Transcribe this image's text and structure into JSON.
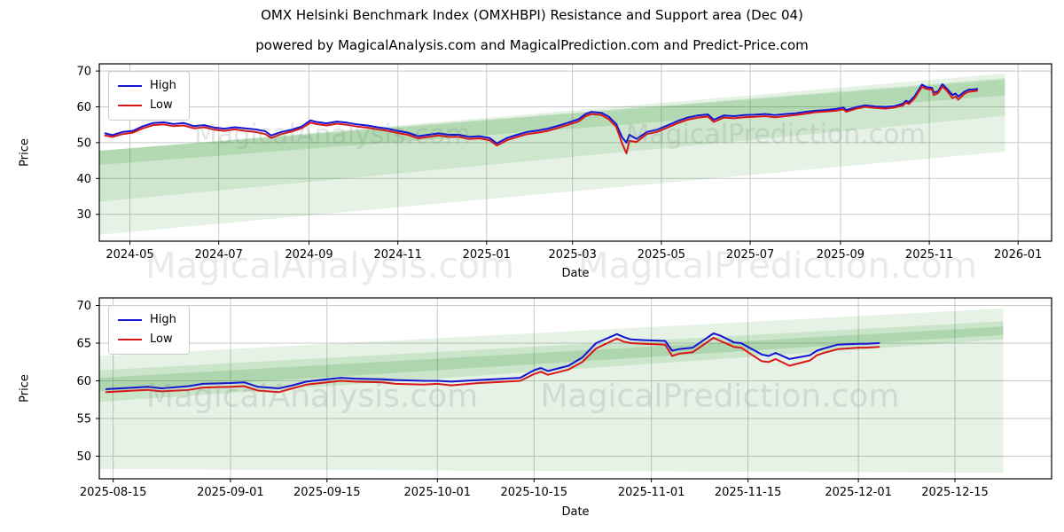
{
  "figure": {
    "title": "OMX Helsinki Benchmark Index (OMXHBPI) Resistance and Support area (Dec 04)",
    "subtitle": "powered by MagicalAnalysis.com and MagicalPrediction.com and Predict-Price.com",
    "background": "#ffffff"
  },
  "colors": {
    "high_line": "#1414d2",
    "low_line": "#d81818",
    "band_green": "#008000",
    "grid": "#c8c8c8",
    "spine": "#000000",
    "tick_text": "#000000"
  },
  "legend": {
    "items": [
      {
        "label": "High",
        "color": "#1414d2"
      },
      {
        "label": "Low",
        "color": "#d81818"
      }
    ]
  },
  "watermarks": [
    "MagicalAnalysis.com",
    "MagicalPrediction.com"
  ],
  "chart_data": [
    {
      "type": "line",
      "title": "",
      "xlabel": "Date",
      "ylabel": "Price",
      "grid": true,
      "legend_position": "upper-left",
      "x_domain": [
        "2024-04-10",
        "2026-01-24"
      ],
      "y_domain": [
        22.5,
        72
      ],
      "y_ticks": [
        30,
        40,
        50,
        60,
        70
      ],
      "x_ticks": [
        {
          "date": "2024-05-01",
          "label": "2024-05"
        },
        {
          "date": "2024-07-01",
          "label": "2024-07"
        },
        {
          "date": "2024-09-01",
          "label": "2024-09"
        },
        {
          "date": "2024-11-01",
          "label": "2024-11"
        },
        {
          "date": "2025-01-01",
          "label": "2025-01"
        },
        {
          "date": "2025-03-01",
          "label": "2025-03"
        },
        {
          "date": "2025-05-01",
          "label": "2025-05"
        },
        {
          "date": "2025-07-01",
          "label": "2025-07"
        },
        {
          "date": "2025-09-01",
          "label": "2025-09"
        },
        {
          "date": "2025-11-01",
          "label": "2025-11"
        },
        {
          "date": "2026-01-01",
          "label": "2026-01"
        }
      ],
      "dates": [
        "2024-04-14",
        "2024-04-19",
        "2024-04-26",
        "2024-05-03",
        "2024-05-10",
        "2024-05-17",
        "2024-05-24",
        "2024-05-31",
        "2024-06-07",
        "2024-06-14",
        "2024-06-21",
        "2024-06-28",
        "2024-07-05",
        "2024-07-12",
        "2024-07-19",
        "2024-07-26",
        "2024-08-02",
        "2024-08-06",
        "2024-08-13",
        "2024-08-20",
        "2024-08-27",
        "2024-09-02",
        "2024-09-06",
        "2024-09-13",
        "2024-09-20",
        "2024-09-27",
        "2024-10-04",
        "2024-10-11",
        "2024-10-18",
        "2024-10-25",
        "2024-11-01",
        "2024-11-08",
        "2024-11-15",
        "2024-11-22",
        "2024-11-29",
        "2024-12-06",
        "2024-12-13",
        "2024-12-20",
        "2024-12-27",
        "2025-01-03",
        "2025-01-08",
        "2025-01-15",
        "2025-01-22",
        "2025-01-29",
        "2025-02-05",
        "2025-02-12",
        "2025-02-19",
        "2025-02-26",
        "2025-03-05",
        "2025-03-10",
        "2025-03-14",
        "2025-03-21",
        "2025-03-26",
        "2025-03-31",
        "2025-04-04",
        "2025-04-07",
        "2025-04-09",
        "2025-04-14",
        "2025-04-21",
        "2025-04-28",
        "2025-05-05",
        "2025-05-12",
        "2025-05-19",
        "2025-05-26",
        "2025-06-02",
        "2025-06-06",
        "2025-06-13",
        "2025-06-20",
        "2025-06-27",
        "2025-07-04",
        "2025-07-11",
        "2025-07-18",
        "2025-07-25",
        "2025-08-01",
        "2025-08-08",
        "2025-08-15",
        "2025-08-22",
        "2025-08-29",
        "2025-09-03",
        "2025-09-05",
        "2025-09-12",
        "2025-09-18",
        "2025-09-25",
        "2025-10-02",
        "2025-10-08",
        "2025-10-14",
        "2025-10-16",
        "2025-10-18",
        "2025-10-22",
        "2025-10-27",
        "2025-10-30",
        "2025-11-03",
        "2025-11-04",
        "2025-11-07",
        "2025-11-10",
        "2025-11-13",
        "2025-11-17",
        "2025-11-19",
        "2025-11-21",
        "2025-11-25",
        "2025-11-28",
        "2025-12-02",
        "2025-12-04"
      ],
      "series": [
        {
          "name": "High",
          "color": "#1414d2",
          "values": [
            52.6,
            52.1,
            53.0,
            53.3,
            54.6,
            55.5,
            55.7,
            55.2,
            55.5,
            54.6,
            54.9,
            54.2,
            53.9,
            54.3,
            54.0,
            53.7,
            53.2,
            52.0,
            53.0,
            53.6,
            54.5,
            56.2,
            55.8,
            55.4,
            55.9,
            55.6,
            55.1,
            54.8,
            54.3,
            53.9,
            53.3,
            52.8,
            51.8,
            52.2,
            52.6,
            52.2,
            52.2,
            51.6,
            51.8,
            51.3,
            49.8,
            51.3,
            52.2,
            53.0,
            53.4,
            53.9,
            54.7,
            55.6,
            56.5,
            58.0,
            58.6,
            58.3,
            57.2,
            55.2,
            51.5,
            50.0,
            52.2,
            51.0,
            53.0,
            53.6,
            54.8,
            56.0,
            57.0,
            57.6,
            57.9,
            56.4,
            57.6,
            57.4,
            57.7,
            57.8,
            58.0,
            57.7,
            58.0,
            58.2,
            58.6,
            58.9,
            59.1,
            59.4,
            59.8,
            59.1,
            59.9,
            60.4,
            60.1,
            60.0,
            60.2,
            60.9,
            61.7,
            61.3,
            63.0,
            66.2,
            65.5,
            65.3,
            64.0,
            64.3,
            66.3,
            65.1,
            63.3,
            63.7,
            62.9,
            64.2,
            64.8,
            64.9,
            65.0
          ]
        },
        {
          "name": "Low",
          "color": "#d81818",
          "values": [
            52.0,
            51.6,
            52.4,
            52.8,
            54.0,
            54.9,
            55.1,
            54.6,
            54.8,
            54.0,
            54.3,
            53.6,
            53.3,
            53.7,
            53.3,
            53.0,
            52.4,
            51.3,
            52.4,
            53.1,
            54.0,
            55.6,
            55.2,
            54.8,
            55.3,
            55.0,
            54.5,
            54.2,
            53.7,
            53.3,
            52.7,
            52.2,
            51.2,
            51.6,
            52.0,
            51.6,
            51.6,
            51.0,
            51.2,
            50.7,
            49.2,
            50.7,
            51.6,
            52.4,
            52.8,
            53.3,
            54.1,
            55.0,
            55.9,
            57.4,
            58.0,
            57.7,
            56.5,
            54.4,
            49.8,
            47.0,
            50.5,
            50.2,
            52.4,
            53.0,
            54.2,
            55.4,
            56.4,
            57.0,
            57.3,
            55.8,
            57.0,
            56.8,
            57.1,
            57.2,
            57.4,
            57.1,
            57.4,
            57.7,
            58.1,
            58.5,
            58.7,
            58.9,
            59.3,
            58.6,
            59.5,
            60.0,
            59.7,
            59.5,
            59.8,
            60.4,
            61.2,
            60.8,
            62.4,
            65.6,
            65.0,
            64.8,
            63.3,
            63.8,
            65.7,
            64.5,
            62.4,
            62.9,
            62.0,
            63.6,
            64.2,
            64.4,
            64.5
          ]
        }
      ],
      "bands": [
        {
          "name": "support-resistance-outer",
          "color": "#008000",
          "opacity": 0.1,
          "points": [
            [
              "2024-04-10",
              47.7
            ],
            [
              "2025-12-23",
              69.3
            ],
            [
              "2025-12-23",
              47.5
            ],
            [
              "2024-04-10",
              24.3
            ]
          ]
        },
        {
          "name": "support-resistance-mid",
          "color": "#008000",
          "opacity": 0.1,
          "points": [
            [
              "2024-04-10",
              47.7
            ],
            [
              "2025-12-23",
              67.6
            ],
            [
              "2025-12-23",
              57.5
            ],
            [
              "2024-04-10",
              33.5
            ]
          ]
        },
        {
          "name": "support-resistance-core",
          "color": "#008000",
          "opacity": 0.13,
          "points": [
            [
              "2024-04-10",
              47.8
            ],
            [
              "2025-12-23",
              68.0
            ],
            [
              "2025-12-23",
              63.2
            ],
            [
              "2024-04-10",
              43.8
            ]
          ]
        }
      ]
    },
    {
      "type": "line",
      "title": "",
      "xlabel": "Date",
      "ylabel": "Price",
      "grid": true,
      "legend_position": "upper-left",
      "x_domain": [
        "2025-08-13",
        "2025-12-29"
      ],
      "y_domain": [
        47,
        71
      ],
      "y_ticks": [
        50,
        55,
        60,
        65,
        70
      ],
      "x_ticks": [
        {
          "date": "2025-08-15",
          "label": "2025-08-15"
        },
        {
          "date": "2025-09-01",
          "label": "2025-09-01"
        },
        {
          "date": "2025-09-15",
          "label": "2025-09-15"
        },
        {
          "date": "2025-10-01",
          "label": "2025-10-01"
        },
        {
          "date": "2025-10-15",
          "label": "2025-10-15"
        },
        {
          "date": "2025-11-01",
          "label": "2025-11-01"
        },
        {
          "date": "2025-11-15",
          "label": "2025-11-15"
        },
        {
          "date": "2025-12-01",
          "label": "2025-12-01"
        },
        {
          "date": "2025-12-15",
          "label": "2025-12-15"
        }
      ],
      "dates": [
        "2025-08-14",
        "2025-08-18",
        "2025-08-20",
        "2025-08-22",
        "2025-08-26",
        "2025-08-28",
        "2025-09-01",
        "2025-09-03",
        "2025-09-05",
        "2025-09-08",
        "2025-09-10",
        "2025-09-12",
        "2025-09-15",
        "2025-09-17",
        "2025-09-19",
        "2025-09-23",
        "2025-09-25",
        "2025-09-29",
        "2025-10-01",
        "2025-10-03",
        "2025-10-07",
        "2025-10-09",
        "2025-10-13",
        "2025-10-15",
        "2025-10-16",
        "2025-10-17",
        "2025-10-20",
        "2025-10-22",
        "2025-10-24",
        "2025-10-27",
        "2025-10-28",
        "2025-10-29",
        "2025-10-31",
        "2025-11-03",
        "2025-11-04",
        "2025-11-05",
        "2025-11-07",
        "2025-11-10",
        "2025-11-11",
        "2025-11-13",
        "2025-11-14",
        "2025-11-17",
        "2025-11-18",
        "2025-11-19",
        "2025-11-21",
        "2025-11-24",
        "2025-11-25",
        "2025-11-26",
        "2025-11-28",
        "2025-12-01",
        "2025-12-02",
        "2025-12-04"
      ],
      "series": [
        {
          "name": "High",
          "color": "#1414d2",
          "values": [
            58.9,
            59.1,
            59.2,
            59.0,
            59.3,
            59.6,
            59.7,
            59.8,
            59.2,
            59.0,
            59.4,
            59.9,
            60.2,
            60.4,
            60.3,
            60.2,
            60.1,
            60.0,
            60.0,
            59.9,
            60.1,
            60.2,
            60.4,
            61.4,
            61.7,
            61.3,
            62.0,
            63.1,
            65.0,
            66.2,
            65.8,
            65.5,
            65.4,
            65.3,
            64.0,
            64.2,
            64.4,
            66.3,
            66.0,
            65.1,
            65.0,
            63.5,
            63.3,
            63.7,
            62.9,
            63.4,
            64.0,
            64.3,
            64.8,
            64.9,
            64.9,
            65.0
          ]
        },
        {
          "name": "Low",
          "color": "#d81818",
          "values": [
            58.5,
            58.7,
            58.8,
            58.6,
            58.8,
            59.1,
            59.2,
            59.3,
            58.7,
            58.5,
            59.0,
            59.5,
            59.8,
            60.0,
            59.9,
            59.8,
            59.6,
            59.5,
            59.6,
            59.4,
            59.7,
            59.8,
            60.0,
            60.9,
            61.2,
            60.8,
            61.5,
            62.5,
            64.3,
            65.6,
            65.2,
            65.0,
            64.9,
            64.8,
            63.3,
            63.6,
            63.8,
            65.7,
            65.3,
            64.5,
            64.4,
            62.6,
            62.5,
            62.9,
            62.0,
            62.7,
            63.4,
            63.7,
            64.2,
            64.4,
            64.4,
            64.5
          ]
        }
      ],
      "bands": [
        {
          "name": "support-resistance-outer",
          "color": "#008000",
          "opacity": 0.1,
          "points": [
            [
              "2025-08-13",
              63.3
            ],
            [
              "2025-12-22",
              69.6
            ],
            [
              "2025-12-22",
              47.8
            ],
            [
              "2025-08-13",
              48.3
            ]
          ]
        },
        {
          "name": "support-resistance-mid",
          "color": "#008000",
          "opacity": 0.11,
          "points": [
            [
              "2025-08-13",
              61.4
            ],
            [
              "2025-12-22",
              67.9
            ],
            [
              "2025-12-22",
              65.5
            ],
            [
              "2025-08-13",
              57.2
            ]
          ]
        },
        {
          "name": "support-resistance-core",
          "color": "#008000",
          "opacity": 0.14,
          "points": [
            [
              "2025-08-13",
              60.4
            ],
            [
              "2025-12-22",
              67.2
            ],
            [
              "2025-12-22",
              66.1
            ],
            [
              "2025-08-13",
              58.6
            ]
          ]
        }
      ]
    }
  ]
}
